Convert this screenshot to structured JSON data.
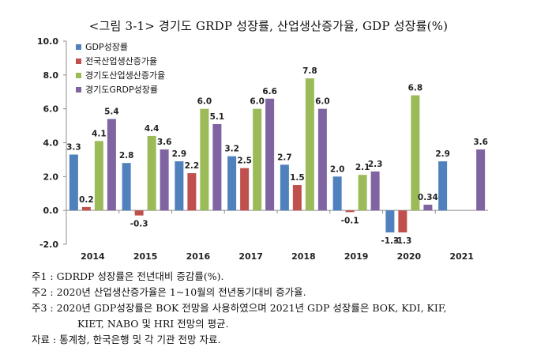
{
  "title": "<그림 3-1> 경기도 GRDP 성장률, 산업생산증가율, GDP 성장률(%)",
  "chart_data": {
    "type": "bar",
    "categories": [
      "2014",
      "2015",
      "2016",
      "2017",
      "2018",
      "2019",
      "2020",
      "2021"
    ],
    "ylim": [
      -2.0,
      10.0
    ],
    "yticks": [
      "-2.0",
      "0.0",
      "2.0",
      "4.0",
      "6.0",
      "8.0",
      "10.0"
    ],
    "grid": false,
    "legend_position": "top-left",
    "series": [
      {
        "name": "GDP성장률",
        "color": "#4f81bd",
        "values": [
          3.3,
          2.8,
          2.9,
          3.2,
          2.7,
          2.0,
          -1.3,
          2.9
        ],
        "labels": [
          "3.3",
          "2.8",
          "2.9",
          "3.2",
          "2.7",
          "2.0",
          "-1.3",
          "2.9"
        ]
      },
      {
        "name": "전국산업생산증가율",
        "color": "#c0504d",
        "values": [
          0.2,
          -0.3,
          2.2,
          2.5,
          1.5,
          -0.1,
          -1.3,
          null
        ],
        "labels": [
          "0.2",
          "-0.3",
          "2.2",
          "2.5",
          "1.5",
          "-0.1",
          "-1.3",
          ""
        ]
      },
      {
        "name": "경기도산업생산증가율",
        "color": "#9bbb59",
        "values": [
          4.1,
          4.4,
          6.0,
          6.0,
          7.8,
          2.1,
          6.8,
          null
        ],
        "labels": [
          "4.1",
          "4.4",
          "6.0",
          "6.0",
          "7.8",
          "2.1",
          "6.8",
          ""
        ]
      },
      {
        "name": "경기도GRDP성장률",
        "color": "#8064a2",
        "values": [
          5.4,
          3.6,
          5.1,
          6.6,
          6.0,
          2.3,
          0.34,
          3.6
        ],
        "labels": [
          "5.4",
          "3.6",
          "5.1",
          "6.6",
          "6.0",
          "2.3",
          "0.34",
          "3.6"
        ]
      }
    ]
  },
  "notes": {
    "n1": "주1 : GDRDP 성장률은 전년대비 증감률(%).",
    "n2": "주2 : 2020년 산업생산증가율은 1~10월의 전년동기대비 증가율.",
    "n3": "주3 : 2020년 GDP성장률은 BOK 전망을 사용하였으며 2021년 GDP 성장률은 BOK, KDI, KIF,",
    "n3b": "KIET, NABO 및 HRI 전망의 평균.",
    "n4": "자료 : 통계청, 한국은행 및 각 기관 전망 자료."
  }
}
